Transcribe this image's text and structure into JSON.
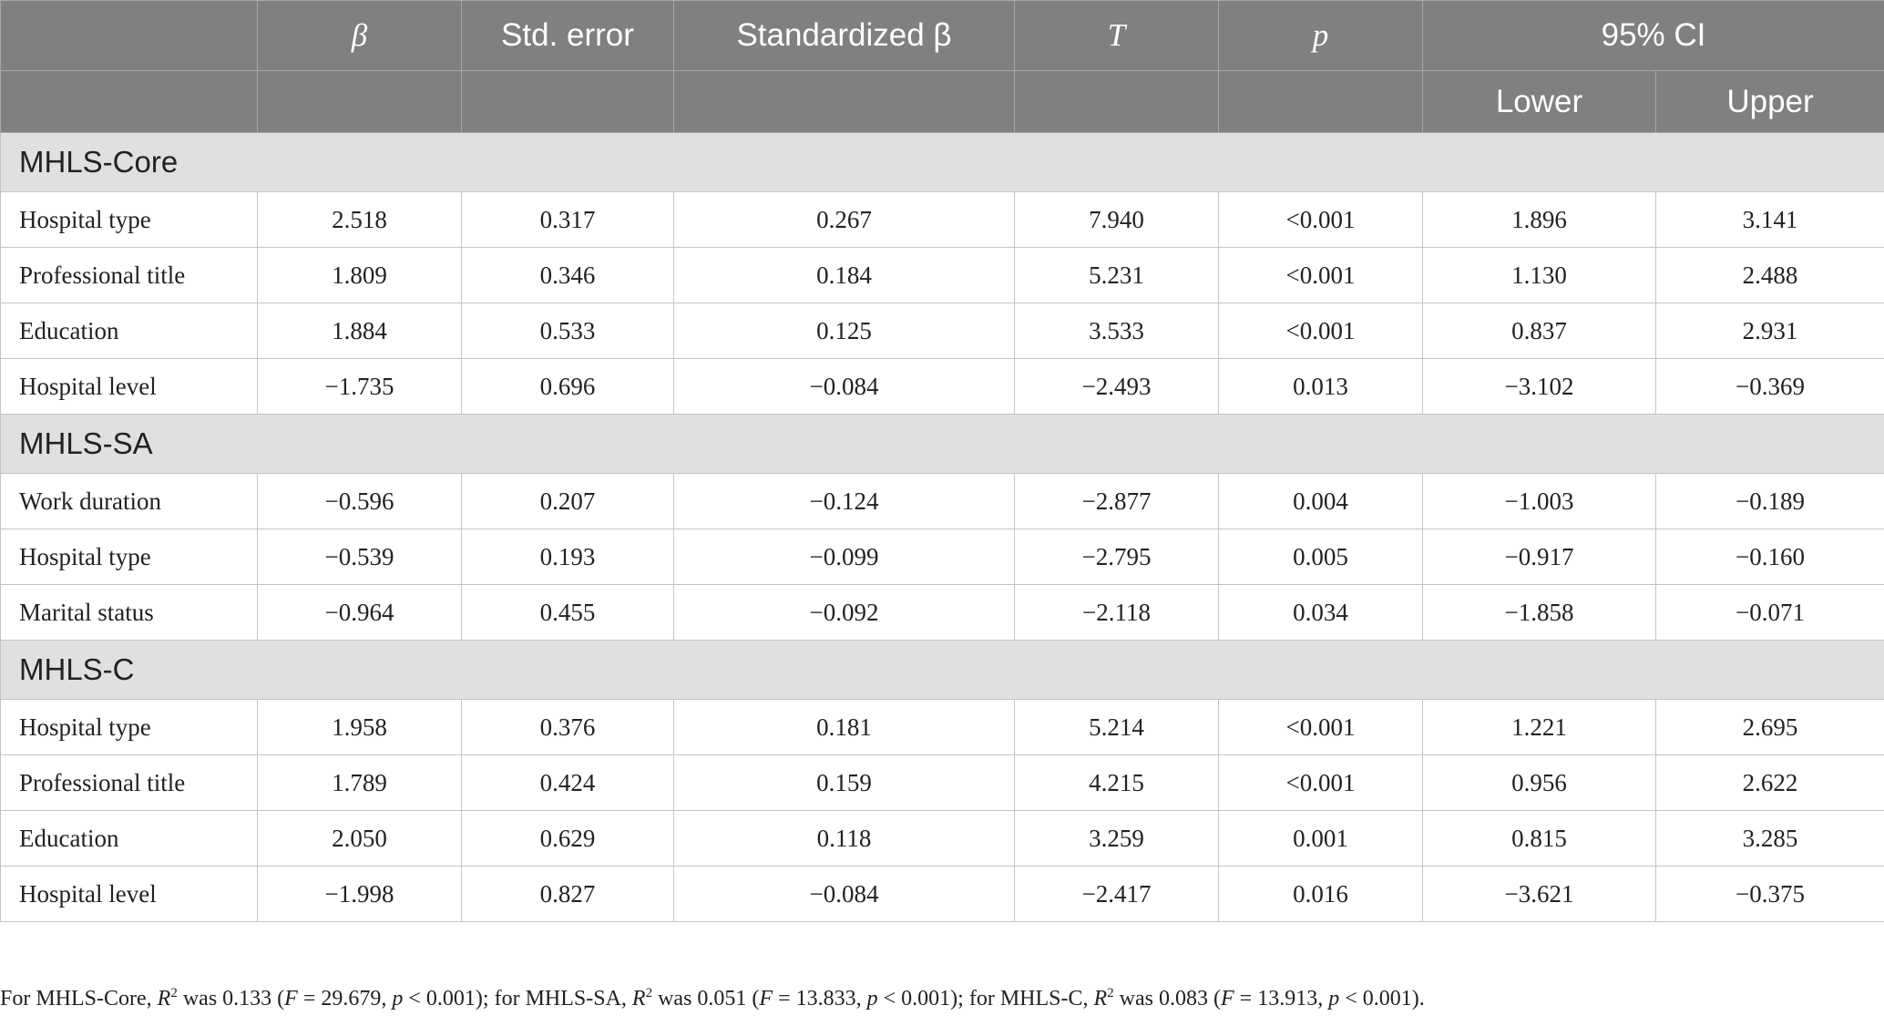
{
  "table": {
    "columns": [
      "β",
      "Std. error",
      "Standardized β",
      "T",
      "p",
      "95% CI"
    ],
    "ci_sub": [
      "Lower",
      "Upper"
    ],
    "groups": [
      {
        "name": "MHLS-Core",
        "rows": [
          [
            "Hospital type",
            "2.518",
            "0.317",
            "0.267",
            "7.940",
            "<0.001",
            "1.896",
            "3.141"
          ],
          [
            "Professional title",
            "1.809",
            "0.346",
            "0.184",
            "5.231",
            "<0.001",
            "1.130",
            "2.488"
          ],
          [
            "Education",
            "1.884",
            "0.533",
            "0.125",
            "3.533",
            "<0.001",
            "0.837",
            "2.931"
          ],
          [
            "Hospital level",
            "−1.735",
            "0.696",
            "−0.084",
            "−2.493",
            "0.013",
            "−3.102",
            "−0.369"
          ]
        ]
      },
      {
        "name": "MHLS-SA",
        "rows": [
          [
            "Work duration",
            "−0.596",
            "0.207",
            "−0.124",
            "−2.877",
            "0.004",
            "−1.003",
            "−0.189"
          ],
          [
            "Hospital type",
            "−0.539",
            "0.193",
            "−0.099",
            "−2.795",
            "0.005",
            "−0.917",
            "−0.160"
          ],
          [
            "Marital status",
            "−0.964",
            "0.455",
            "−0.092",
            "−2.118",
            "0.034",
            "−1.858",
            "−0.071"
          ]
        ]
      },
      {
        "name": "MHLS-C",
        "rows": [
          [
            "Hospital type",
            "1.958",
            "0.376",
            "0.181",
            "5.214",
            "<0.001",
            "1.221",
            "2.695"
          ],
          [
            "Professional title",
            "1.789",
            "0.424",
            "0.159",
            "4.215",
            "<0.001",
            "0.956",
            "2.622"
          ],
          [
            "Education",
            "2.050",
            "0.629",
            "0.118",
            "3.259",
            "0.001",
            "0.815",
            "3.285"
          ],
          [
            "Hospital level",
            "−1.998",
            "0.827",
            "−0.084",
            "−2.417",
            "0.016",
            "−3.621",
            "−0.375"
          ]
        ]
      }
    ]
  },
  "footnote": [
    "For MHLS-Core, ",
    "R",
    "2",
    " was 0.133 (",
    "F",
    " = 29.679, ",
    "p",
    " < 0.001); for MHLS-SA, ",
    "R",
    "2",
    " was 0.051 (",
    "F",
    " = 13.833, ",
    "p",
    " < 0.001); for MHLS-C, ",
    "R",
    "2",
    " was 0.083 (",
    "F",
    " = 13.913, ",
    "p",
    " < 0.001)."
  ]
}
